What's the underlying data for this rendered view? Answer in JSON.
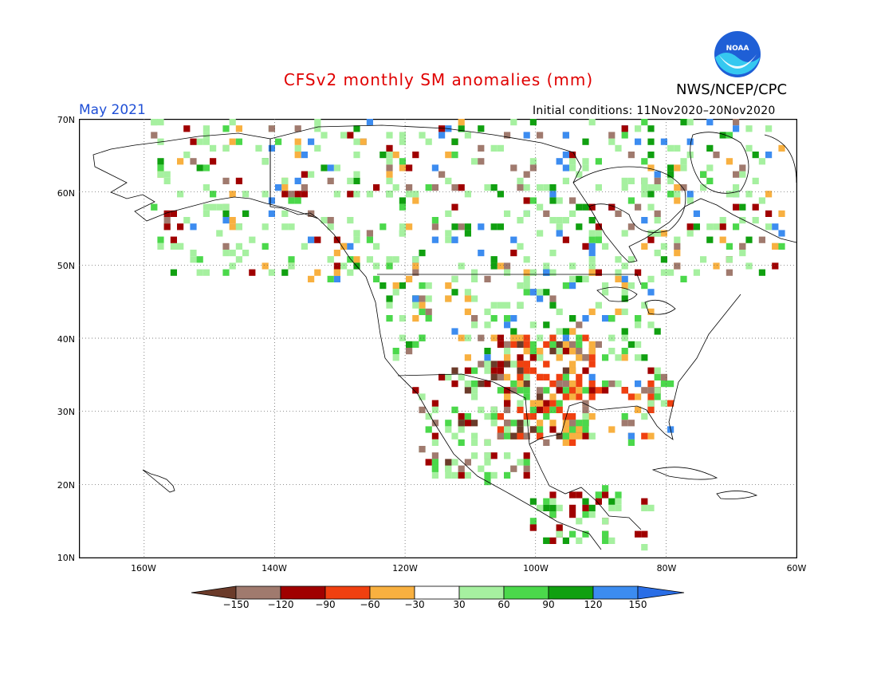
{
  "header": {
    "title": "CFSv2 monthly SM anomalies (mm)",
    "valid_month": "May 2021",
    "initial_conditions": "Initial conditions: 11Nov2020–20Nov2020",
    "organization": "NWS/NCEP/CPC",
    "logo_text": "NOAA"
  },
  "map": {
    "region": "North America",
    "lat_range": [
      10,
      70
    ],
    "lon_range": [
      -170,
      -60
    ],
    "lat_ticks": [
      "70N",
      "60N",
      "50N",
      "40N",
      "30N",
      "20N",
      "10N"
    ],
    "lon_ticks": [
      "160W",
      "140W",
      "120W",
      "100W",
      "80W",
      "60W"
    ],
    "gridlines": "dotted"
  },
  "colorbar": {
    "labels": [
      "−150",
      "−120",
      "−90",
      "−60",
      "−30",
      "30",
      "60",
      "90",
      "120",
      "150"
    ],
    "colors": [
      "#6b3b2a",
      "#a07a6e",
      "#a00000",
      "#f04010",
      "#f8b040",
      "#ffffff",
      "#a6f0a0",
      "#4bd84b",
      "#10a010",
      "#3c8cf0",
      "#2a6ee6"
    ]
  }
}
